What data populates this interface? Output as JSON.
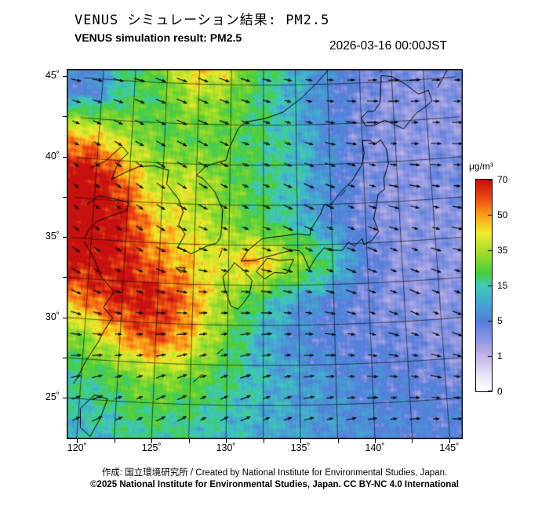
{
  "header": {
    "title_jp": "VENUS シミュレーション結果: PM2.5",
    "title_en": "VENUS simulation result: PM2.5",
    "datetime": "2026-03-16 00:00JST"
  },
  "footer": {
    "credit": "作成: 国立環境研究所 / Created by National Institute for Environmental Studies, Japan.",
    "license": "©2025 National Institute for Environmental Studies, Japan. CC BY-NC 4.0 International"
  },
  "colorbar": {
    "unit": "μg/m³",
    "tick_labels": [
      "70",
      "50",
      "35",
      "15",
      "5",
      "1",
      "0"
    ]
  },
  "chart_data": {
    "type": "heatmap",
    "title": "VENUS simulation result: PM2.5",
    "variable": "PM2.5",
    "unit": "μg/m³",
    "datetime": "2026-03-16 00:00JST",
    "projection": "conic",
    "lon_range": [
      119.5,
      146.2
    ],
    "lat_range": [
      22.5,
      45.7
    ],
    "lon_ticks": [
      "120˚",
      "125˚",
      "130˚",
      "135˚",
      "140˚",
      "145˚"
    ],
    "lon_tick_values": [
      120,
      125,
      130,
      135,
      140,
      145
    ],
    "lat_ticks": [
      "45˚",
      "40˚",
      "35˚",
      "30˚",
      "25˚"
    ],
    "lat_tick_values": [
      45,
      40,
      35,
      30,
      25
    ],
    "scale_values": [
      0,
      1,
      5,
      15,
      35,
      50,
      70
    ],
    "grid_lons": [
      119.5,
      122,
      124.5,
      127,
      129.5,
      132,
      134.5,
      137,
      139.5,
      142,
      144.5,
      147
    ],
    "grid_lats": [
      46.5,
      44,
      41.5,
      39,
      36.5,
      34,
      31.5,
      29,
      26.5,
      24,
      22.5
    ],
    "pm25": [
      [
        8,
        18,
        30,
        50,
        45,
        22,
        15,
        8,
        5,
        4,
        4,
        4
      ],
      [
        6,
        20,
        22,
        35,
        30,
        20,
        12,
        7,
        4,
        3,
        3,
        3
      ],
      [
        45,
        35,
        25,
        25,
        25,
        20,
        15,
        8,
        4,
        3,
        3,
        3
      ],
      [
        75,
        55,
        35,
        38,
        28,
        20,
        15,
        8,
        4,
        3,
        3,
        4
      ],
      [
        80,
        70,
        45,
        40,
        32,
        22,
        15,
        7,
        4,
        3,
        3,
        3
      ],
      [
        75,
        70,
        55,
        45,
        40,
        50,
        35,
        20,
        6,
        3,
        3,
        3
      ],
      [
        55,
        68,
        70,
        55,
        35,
        20,
        10,
        6,
        4,
        3,
        3,
        3
      ],
      [
        30,
        45,
        60,
        50,
        28,
        12,
        7,
        5,
        4,
        4,
        3,
        3
      ],
      [
        18,
        22,
        30,
        28,
        20,
        14,
        10,
        8,
        6,
        5,
        4,
        4
      ],
      [
        14,
        16,
        20,
        18,
        15,
        12,
        10,
        8,
        7,
        6,
        5,
        5
      ],
      [
        12,
        14,
        17,
        16,
        14,
        11,
        9,
        8,
        7,
        6,
        5,
        5
      ]
    ],
    "wind": {
      "lons": [
        120,
        124,
        128,
        132,
        136,
        140,
        144,
        147.5
      ],
      "lats": [
        46,
        42,
        38,
        34,
        30,
        26,
        22.5
      ],
      "dir_deg": [
        [
          -5,
          -15,
          -20,
          -15,
          -5,
          5,
          5,
          0
        ],
        [
          -25,
          -30,
          -25,
          -20,
          -15,
          -5,
          0,
          0
        ],
        [
          -40,
          -35,
          -30,
          -25,
          -25,
          -15,
          -10,
          -5
        ],
        [
          -35,
          -30,
          -15,
          -15,
          -25,
          -25,
          -20,
          -15
        ],
        [
          -15,
          -5,
          5,
          5,
          -5,
          -15,
          -25,
          -20
        ],
        [
          15,
          20,
          25,
          20,
          10,
          0,
          -10,
          -10
        ],
        [
          30,
          30,
          30,
          25,
          20,
          15,
          10,
          5
        ]
      ]
    },
    "colormap": [
      {
        "t": 0.0,
        "rgb": [
          255,
          255,
          255
        ]
      },
      {
        "t": 0.08,
        "rgb": [
          232,
          228,
          246
        ]
      },
      {
        "t": 0.167,
        "rgb": [
          197,
          181,
          232
        ]
      },
      {
        "t": 0.25,
        "rgb": [
          140,
          150,
          225
        ]
      },
      {
        "t": 0.333,
        "rgb": [
          85,
          125,
          218
        ]
      },
      {
        "t": 0.417,
        "rgb": [
          70,
          165,
          210
        ]
      },
      {
        "t": 0.5,
        "rgb": [
          62,
          202,
          186
        ]
      },
      {
        "t": 0.56,
        "rgb": [
          72,
          205,
          62
        ]
      },
      {
        "t": 0.667,
        "rgb": [
          172,
          222,
          42
        ]
      },
      {
        "t": 0.75,
        "rgb": [
          238,
          236,
          48
        ]
      },
      {
        "t": 0.833,
        "rgb": [
          252,
          160,
          26
        ]
      },
      {
        "t": 0.91,
        "rgb": [
          236,
          76,
          20
        ]
      },
      {
        "t": 1.0,
        "rgb": [
          198,
          16,
          16
        ]
      }
    ],
    "coastlines": [
      [
        [
          119.5,
          39.4
        ],
        [
          120.6,
          39.9
        ],
        [
          121.8,
          40.9
        ],
        [
          122.3,
          40.5
        ],
        [
          121.6,
          39.9
        ],
        [
          121.2,
          38.8
        ],
        [
          122.2,
          39.3
        ],
        [
          123.2,
          39.7
        ],
        [
          124.3,
          39.8
        ]
      ],
      [
        [
          124.3,
          39.8
        ],
        [
          125.4,
          39.55
        ],
        [
          125.3,
          38.7
        ],
        [
          126.2,
          37.8
        ],
        [
          126.6,
          37.0
        ],
        [
          126.3,
          36.2
        ],
        [
          126.8,
          35.6
        ],
        [
          126.3,
          34.8
        ],
        [
          127.3,
          34.4
        ],
        [
          128.4,
          34.9
        ],
        [
          129.1,
          35.1
        ],
        [
          129.4,
          35.5
        ],
        [
          129.45,
          36.1
        ],
        [
          129.5,
          37.2
        ],
        [
          128.9,
          38.3
        ],
        [
          128.0,
          39.1
        ],
        [
          127.5,
          39.3
        ],
        [
          128.2,
          39.9
        ],
        [
          129.7,
          40.3
        ],
        [
          129.9,
          41.0
        ],
        [
          130.6,
          42.3
        ],
        [
          131.2,
          42.7
        ],
        [
          132.6,
          42.9
        ],
        [
          134.0,
          43.3
        ],
        [
          135.5,
          44.2
        ],
        [
          136.8,
          45.2
        ],
        [
          137.7,
          46.0
        ]
      ],
      [
        [
          119.5,
          37.1
        ],
        [
          120.3,
          37.7
        ],
        [
          121.5,
          37.6
        ],
        [
          122.6,
          37.4
        ],
        [
          122.4,
          36.9
        ],
        [
          121.0,
          36.4
        ],
        [
          120.3,
          36.1
        ],
        [
          119.8,
          35.6
        ],
        [
          119.5,
          35.0
        ]
      ],
      [
        [
          119.5,
          34.8
        ],
        [
          120.3,
          33.8
        ],
        [
          120.9,
          32.7
        ],
        [
          121.9,
          31.8
        ],
        [
          121.2,
          30.8
        ],
        [
          121.9,
          30.2
        ],
        [
          121.4,
          29.4
        ],
        [
          121.0,
          28.6
        ],
        [
          120.2,
          27.3
        ],
        [
          119.8,
          26.4
        ],
        [
          119.5,
          25.9
        ]
      ],
      [
        [
          121.0,
          25.3
        ],
        [
          121.9,
          25.1
        ],
        [
          121.5,
          23.9
        ],
        [
          120.9,
          22.7
        ],
        [
          120.2,
          23.2
        ],
        [
          120.1,
          24.4
        ],
        [
          121.0,
          25.3
        ]
      ],
      [
        [
          130.2,
          33.6
        ],
        [
          129.6,
          33.0
        ],
        [
          129.8,
          32.2
        ],
        [
          130.2,
          31.2
        ],
        [
          130.7,
          31.0
        ],
        [
          131.1,
          31.4
        ],
        [
          131.5,
          31.9
        ],
        [
          131.7,
          32.8
        ],
        [
          131.0,
          33.5
        ],
        [
          130.4,
          33.9
        ],
        [
          130.2,
          33.6
        ]
      ],
      [
        [
          132.0,
          33.35
        ],
        [
          132.6,
          32.9
        ],
        [
          133.3,
          33.3
        ],
        [
          134.2,
          33.25
        ],
        [
          134.7,
          34.1
        ],
        [
          133.6,
          34.05
        ],
        [
          132.8,
          34.2
        ],
        [
          132.0,
          33.35
        ]
      ],
      [
        [
          130.9,
          34.0
        ],
        [
          131.8,
          34.05
        ],
        [
          132.6,
          34.25
        ],
        [
          133.5,
          34.45
        ],
        [
          134.6,
          34.7
        ],
        [
          135.1,
          34.65
        ],
        [
          135.4,
          34.35
        ],
        [
          135.8,
          33.5
        ],
        [
          136.3,
          34.2
        ],
        [
          136.9,
          34.8
        ],
        [
          137.3,
          34.65
        ],
        [
          138.2,
          34.6
        ],
        [
          138.7,
          35.1
        ],
        [
          139.1,
          34.85
        ],
        [
          139.7,
          35.3
        ],
        [
          139.8,
          34.9
        ],
        [
          140.4,
          35.15
        ],
        [
          140.9,
          35.7
        ],
        [
          140.6,
          36.5
        ],
        [
          140.8,
          37.2
        ],
        [
          141.0,
          38.0
        ],
        [
          141.5,
          38.3
        ],
        [
          141.5,
          39.0
        ],
        [
          141.9,
          39.9
        ],
        [
          141.8,
          40.8
        ],
        [
          141.4,
          41.4
        ],
        [
          140.9,
          41.1
        ],
        [
          140.6,
          41.4
        ],
        [
          140.0,
          41.4
        ],
        [
          140.1,
          40.6
        ],
        [
          139.9,
          39.9
        ],
        [
          139.1,
          38.9
        ],
        [
          138.3,
          38.3
        ],
        [
          137.4,
          37.4
        ],
        [
          137.0,
          37.5
        ],
        [
          136.7,
          36.9
        ],
        [
          136.0,
          36.0
        ],
        [
          135.9,
          35.6
        ],
        [
          135.0,
          35.7
        ],
        [
          134.2,
          35.6
        ],
        [
          133.1,
          35.5
        ],
        [
          132.4,
          35.4
        ],
        [
          131.4,
          34.7
        ],
        [
          130.9,
          34.0
        ]
      ],
      [
        [
          140.3,
          42.3
        ],
        [
          140.0,
          42.8
        ],
        [
          140.5,
          43.2
        ],
        [
          141.0,
          43.2
        ],
        [
          141.5,
          43.7
        ],
        [
          141.6,
          44.5
        ],
        [
          141.7,
          45.4
        ],
        [
          142.5,
          45.3
        ],
        [
          143.5,
          44.8
        ],
        [
          144.5,
          44.1
        ],
        [
          145.3,
          44.3
        ],
        [
          145.5,
          43.6
        ],
        [
          145.0,
          43.3
        ],
        [
          144.2,
          42.9
        ],
        [
          143.2,
          42.0
        ],
        [
          142.5,
          42.3
        ],
        [
          141.8,
          42.6
        ],
        [
          140.9,
          42.3
        ],
        [
          140.3,
          42.3
        ]
      ],
      [
        [
          126.2,
          33.5
        ],
        [
          126.9,
          33.5
        ],
        [
          126.6,
          33.2
        ],
        [
          126.2,
          33.5
        ]
      ],
      [
        [
          129.3,
          34.2
        ],
        [
          129.5,
          34.65
        ]
      ],
      [
        [
          138.2,
          38.0
        ],
        [
          138.6,
          38.35
        ]
      ],
      [
        [
          127.7,
          26.4
        ],
        [
          128.3,
          26.9
        ]
      ],
      [
        [
          129.3,
          28.2
        ],
        [
          129.7,
          28.5
        ]
      ],
      [
        [
          141.6,
          45.6
        ],
        [
          142.1,
          46.0
        ]
      ],
      [
        [
          146.0,
          44.4
        ],
        [
          146.9,
          45.5
        ]
      ]
    ]
  }
}
